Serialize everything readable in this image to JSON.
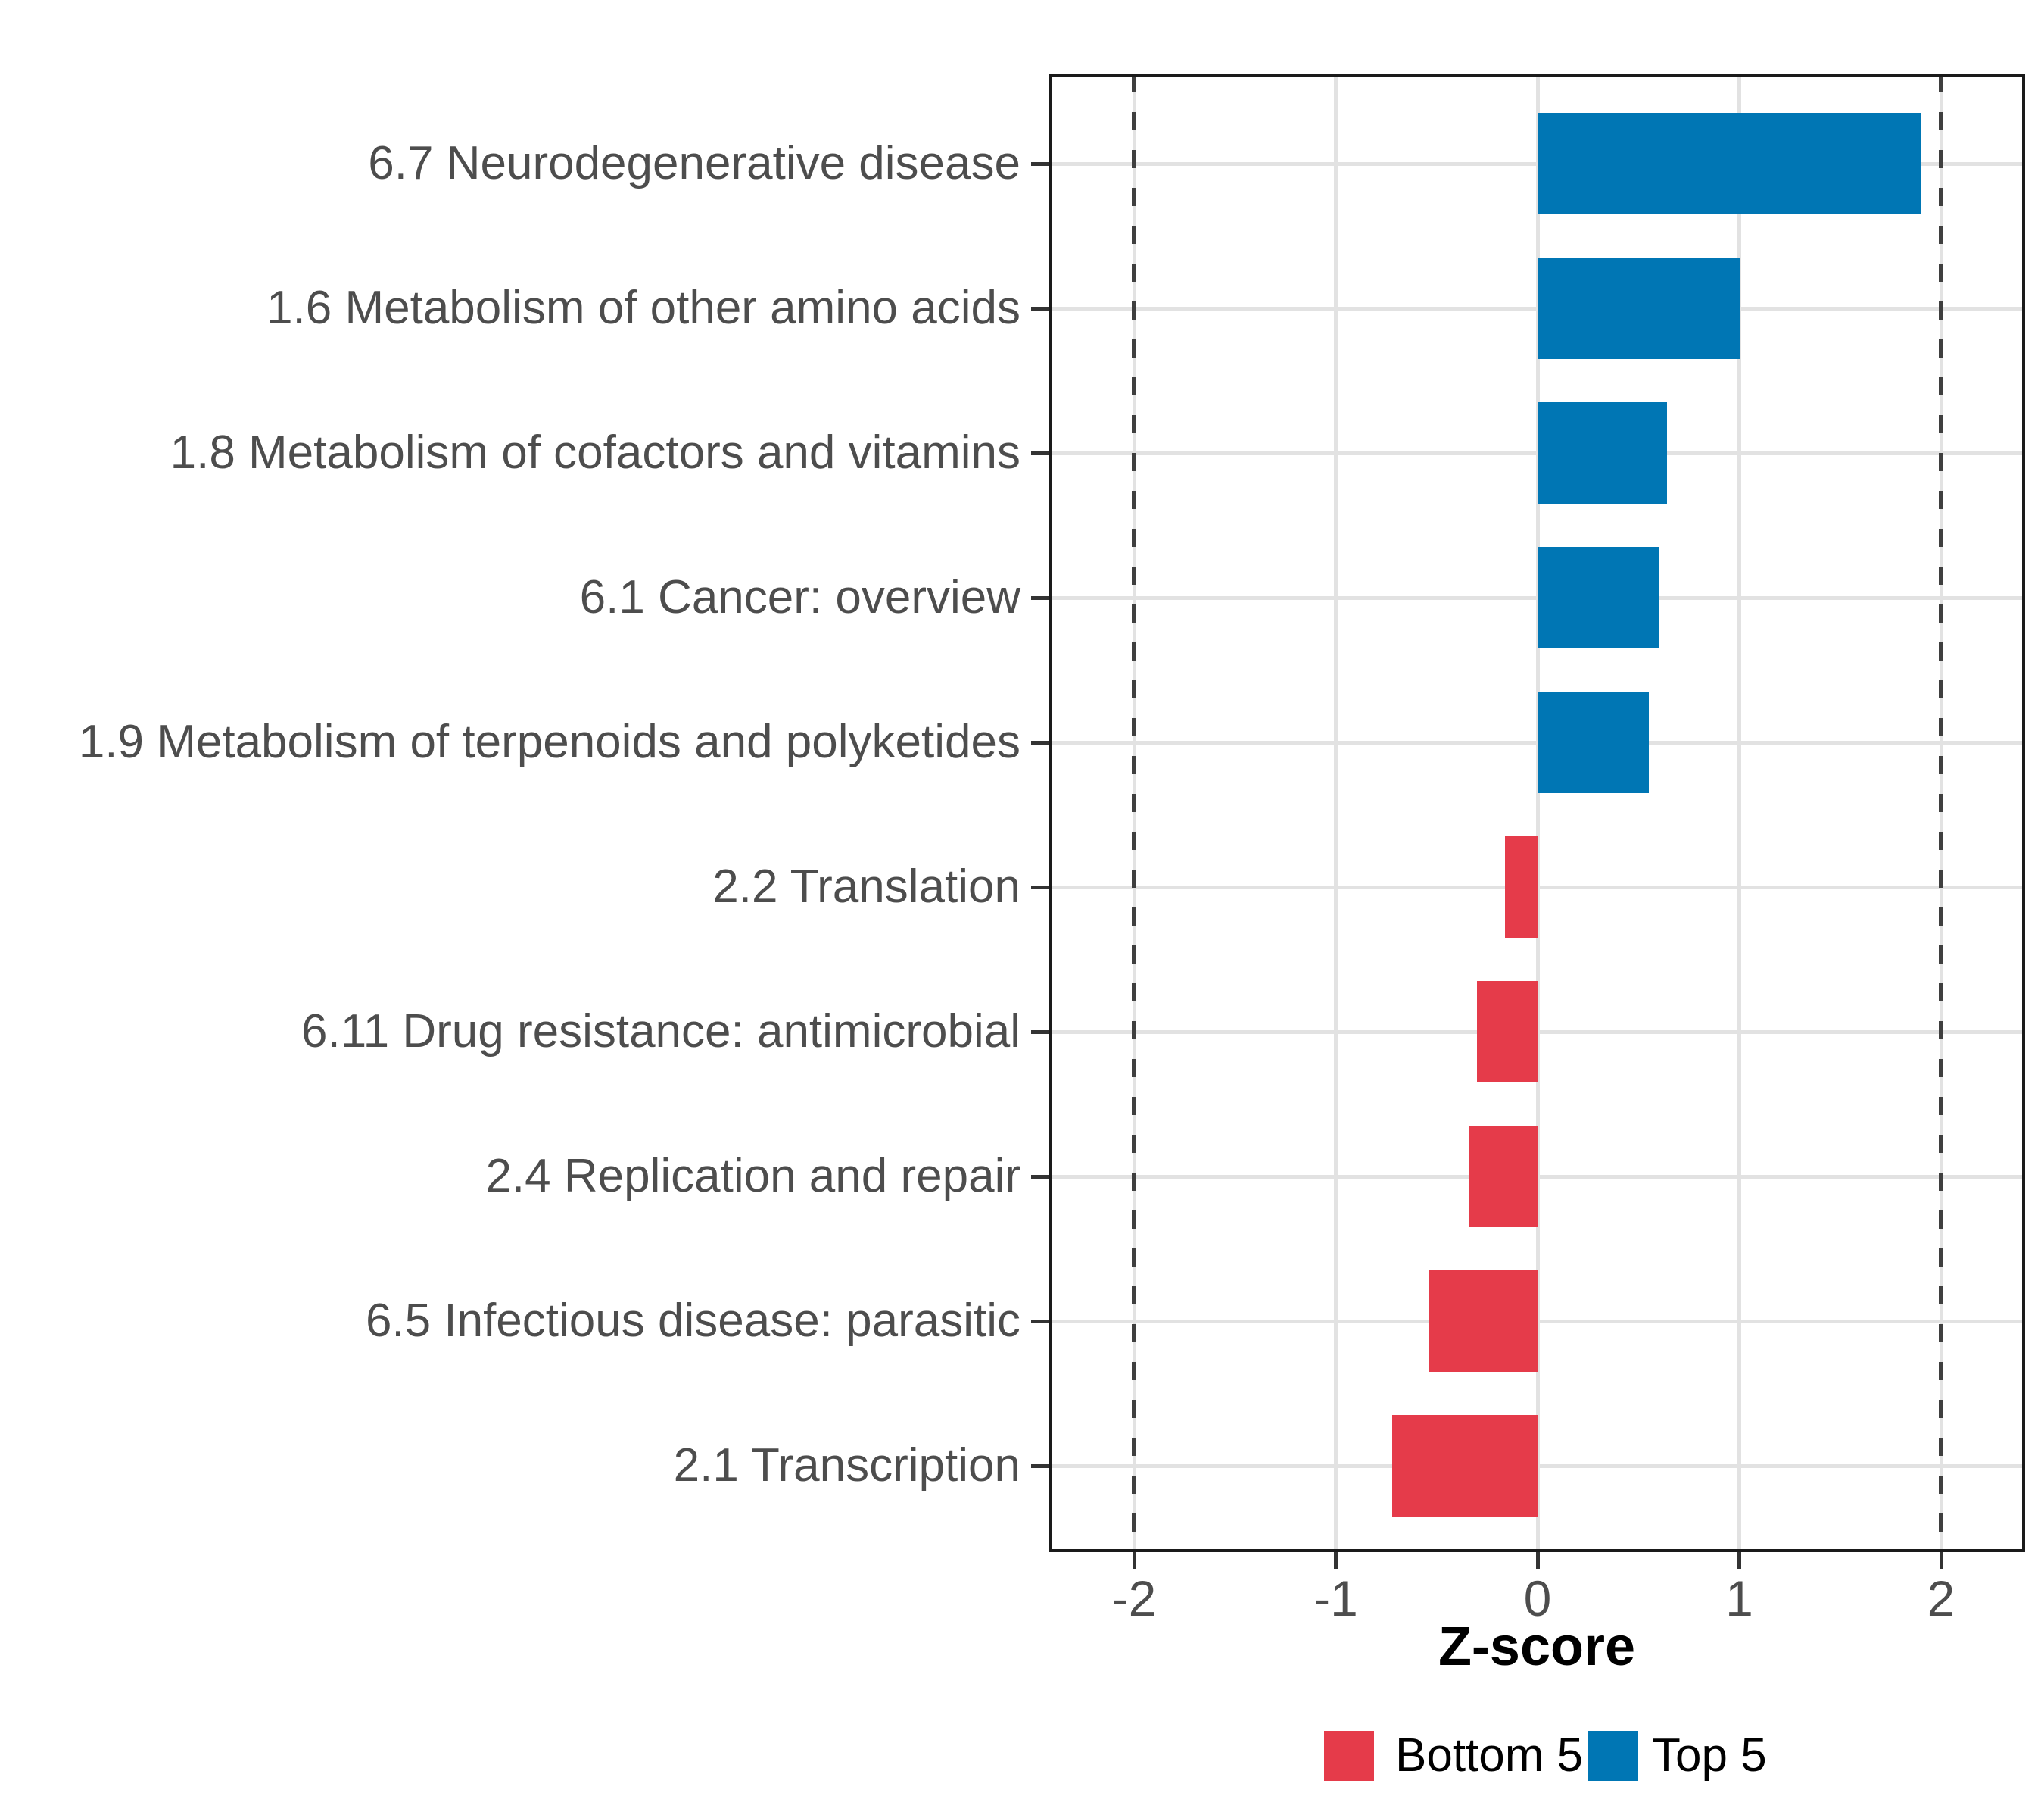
{
  "chart_data": {
    "type": "bar",
    "orientation": "horizontal",
    "title": "",
    "xlabel": "Z-score",
    "ylabel": "",
    "xlim": [
      -2.42,
      2.42
    ],
    "x_tick_labels": [
      "-2",
      "-1",
      "0",
      "1",
      "2"
    ],
    "x_tick_values": [
      -2,
      -1,
      0,
      1,
      2
    ],
    "grid": true,
    "legend_position": "bottom",
    "reference_lines": {
      "values": [
        -2,
        2
      ],
      "style": "dashed",
      "color": "#3f3f3f"
    },
    "categories": [
      "6.7 Neurodegenerative disease",
      "1.6 Metabolism of other amino acids",
      "1.8 Metabolism of cofactors and vitamins",
      "6.1 Cancer: overview",
      "1.9 Metabolism of terpenoids and polyketides",
      "2.2 Translation",
      "6.11 Drug resistance: antimicrobial",
      "2.4 Replication and repair",
      "6.5 Infectious disease: parasitic",
      "2.1 Transcription"
    ],
    "values": [
      1.9,
      1.0,
      0.64,
      0.6,
      0.55,
      -0.16,
      -0.3,
      -0.34,
      -0.54,
      -0.72
    ],
    "groups": [
      "Top 5",
      "Top 5",
      "Top 5",
      "Top 5",
      "Top 5",
      "Bottom 5",
      "Bottom 5",
      "Bottom 5",
      "Bottom 5",
      "Bottom 5"
    ],
    "legend": [
      {
        "label": "Bottom 5",
        "color": "#e53b4a"
      },
      {
        "label": "Top 5",
        "color": "#0076b4"
      }
    ]
  },
  "colors": {
    "bar_top5": "#0076b4",
    "bar_bottom5": "#e53b4a",
    "axis_text": "#4d4d4d",
    "title_text": "#000000",
    "gridline": "#e2e2e2",
    "dashed_line": "#3f3f3f",
    "panel_border": "#1a1a1a",
    "background": "#ffffff"
  }
}
